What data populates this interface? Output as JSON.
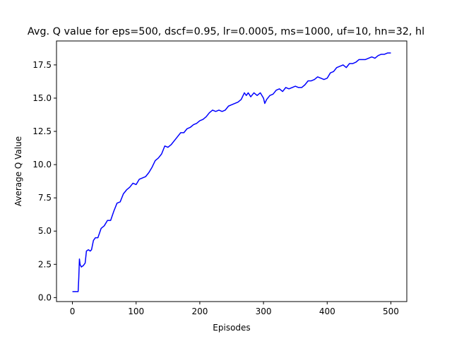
{
  "chart_data": {
    "type": "line",
    "title": "Avg. Q value for eps=500, dscf=0.95, lr=0.0005, ms=1000, uf=10, hn=32, hl",
    "xlabel": "Episodes",
    "ylabel": "Average Q Value",
    "xlim": [
      -25,
      525
    ],
    "ylim": [
      -0.3,
      19.3
    ],
    "xticks": [
      0,
      100,
      200,
      300,
      400,
      500
    ],
    "xtick_labels": [
      "0",
      "100",
      "200",
      "300",
      "400",
      "500"
    ],
    "yticks": [
      0.0,
      2.5,
      5.0,
      7.5,
      10.0,
      12.5,
      15.0,
      17.5
    ],
    "ytick_labels": [
      "0.0",
      "2.5",
      "5.0",
      "7.5",
      "10.0",
      "12.5",
      "15.0",
      "17.5"
    ],
    "grid": false,
    "legend": "none",
    "series": [
      {
        "color": "#0000ff",
        "x": [
          0,
          9,
          10,
          11,
          12,
          14,
          17,
          20,
          22,
          25,
          28,
          30,
          33,
          36,
          40,
          45,
          50,
          55,
          60,
          65,
          70,
          75,
          80,
          85,
          90,
          95,
          100,
          105,
          110,
          115,
          120,
          125,
          130,
          135,
          140,
          145,
          150,
          155,
          160,
          165,
          170,
          175,
          180,
          185,
          190,
          195,
          200,
          205,
          210,
          215,
          220,
          225,
          230,
          235,
          240,
          245,
          250,
          255,
          260,
          265,
          270,
          273,
          276,
          280,
          285,
          290,
          295,
          300,
          302,
          305,
          310,
          315,
          320,
          325,
          330,
          335,
          340,
          345,
          350,
          355,
          360,
          365,
          370,
          375,
          380,
          385,
          390,
          395,
          400,
          405,
          410,
          415,
          420,
          425,
          430,
          435,
          440,
          445,
          450,
          455,
          460,
          465,
          470,
          475,
          480,
          485,
          490,
          495,
          500
        ],
        "y": [
          0.45,
          0.45,
          1.5,
          2.9,
          2.5,
          2.3,
          2.4,
          2.6,
          3.5,
          3.6,
          3.5,
          3.6,
          4.3,
          4.5,
          4.5,
          5.2,
          5.4,
          5.8,
          5.8,
          6.5,
          7.1,
          7.2,
          7.8,
          8.1,
          8.3,
          8.6,
          8.5,
          8.9,
          9.0,
          9.1,
          9.4,
          9.8,
          10.3,
          10.5,
          10.8,
          11.4,
          11.3,
          11.5,
          11.8,
          12.1,
          12.4,
          12.4,
          12.7,
          12.8,
          13.0,
          13.1,
          13.3,
          13.4,
          13.6,
          13.9,
          14.1,
          14.0,
          14.1,
          14.0,
          14.1,
          14.4,
          14.5,
          14.6,
          14.7,
          14.9,
          15.4,
          15.2,
          15.4,
          15.1,
          15.4,
          15.2,
          15.4,
          15.0,
          14.6,
          14.9,
          15.2,
          15.3,
          15.6,
          15.7,
          15.5,
          15.8,
          15.7,
          15.8,
          15.9,
          15.8,
          15.8,
          16.0,
          16.3,
          16.3,
          16.4,
          16.6,
          16.5,
          16.4,
          16.5,
          16.9,
          17.0,
          17.3,
          17.4,
          17.5,
          17.3,
          17.6,
          17.6,
          17.7,
          17.9,
          17.9,
          17.9,
          18.0,
          18.1,
          18.0,
          18.2,
          18.3,
          18.3,
          18.4,
          18.4
        ]
      }
    ]
  }
}
